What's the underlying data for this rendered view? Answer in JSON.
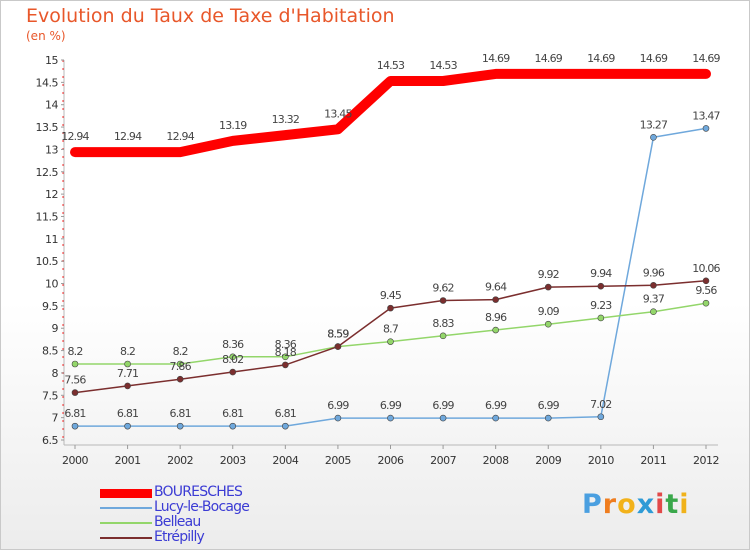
{
  "chart_data": {
    "type": "line",
    "title": "Evolution du Taux de Taxe d'Habitation",
    "unit_label": "(en %)",
    "categories": [
      "2000",
      "2001",
      "2002",
      "2003",
      "2004",
      "2005",
      "2006",
      "2007",
      "2008",
      "2009",
      "2010",
      "2011",
      "2012"
    ],
    "ylim": [
      6.5,
      15
    ],
    "yticks": [
      "6.5",
      "7",
      "7.5",
      "8",
      "8.5",
      "9",
      "9.5",
      "10",
      "10.5",
      "11",
      "11.5",
      "12",
      "12.5",
      "13",
      "13.5",
      "14",
      "14.5",
      "15"
    ],
    "grid": false,
    "legend_position": "bottom-left",
    "series": [
      {
        "name": "BOURESCHES",
        "color": "#ff0000",
        "values": [
          12.94,
          12.94,
          12.94,
          13.19,
          13.32,
          13.45,
          14.53,
          14.53,
          14.69,
          14.69,
          14.69,
          14.69,
          14.69
        ],
        "labels": [
          "12.94",
          "12.94",
          "12.94",
          "13.19",
          "13.32",
          "13.45",
          "14.53",
          "14.53",
          "14.69",
          "14.69",
          "14.69",
          "14.69",
          "14.69"
        ]
      },
      {
        "name": "Lucy-le-Bocage",
        "color": "#6fa8dc",
        "values": [
          6.81,
          6.81,
          6.81,
          6.81,
          6.81,
          6.99,
          6.99,
          6.99,
          6.99,
          6.99,
          7.02,
          13.27,
          13.47
        ],
        "labels": [
          "6.81",
          "6.81",
          "6.81",
          "6.81",
          "6.81",
          "6.99",
          "6.99",
          "6.99",
          "6.99",
          "6.99",
          "7.02",
          "13.27",
          "13.47"
        ]
      },
      {
        "name": "Belleau",
        "color": "#93d66a",
        "values": [
          8.2,
          8.2,
          8.2,
          8.36,
          8.36,
          8.59,
          8.7,
          8.83,
          8.96,
          9.09,
          9.23,
          9.37,
          9.56
        ],
        "labels": [
          "8.2",
          "8.2",
          "8.2",
          "8.36",
          "8.36",
          "8.59",
          "8.7",
          "8.83",
          "8.96",
          "9.09",
          "9.23",
          "9.37",
          "9.56"
        ]
      },
      {
        "name": "Etrépilly",
        "color": "#7b2e2e",
        "values": [
          7.56,
          7.71,
          7.86,
          8.02,
          8.18,
          8.59,
          9.45,
          9.62,
          9.64,
          9.92,
          9.94,
          9.96,
          10.06
        ],
        "labels": [
          "7.56",
          "7.71",
          "7.86",
          "8.02",
          "8.18",
          "8.59",
          "9.45",
          "9.62",
          "9.64",
          "9.92",
          "9.94",
          "9.96",
          "10.06"
        ]
      }
    ]
  },
  "logo": {
    "letters": [
      "P",
      "r",
      "o",
      "x",
      "i",
      "t",
      "i"
    ],
    "colors": [
      "#4a9fe0",
      "#ef7d1f",
      "#f2b21b",
      "#2e9bd6",
      "#e24949",
      "#3aa84b",
      "#f0b21a"
    ]
  }
}
